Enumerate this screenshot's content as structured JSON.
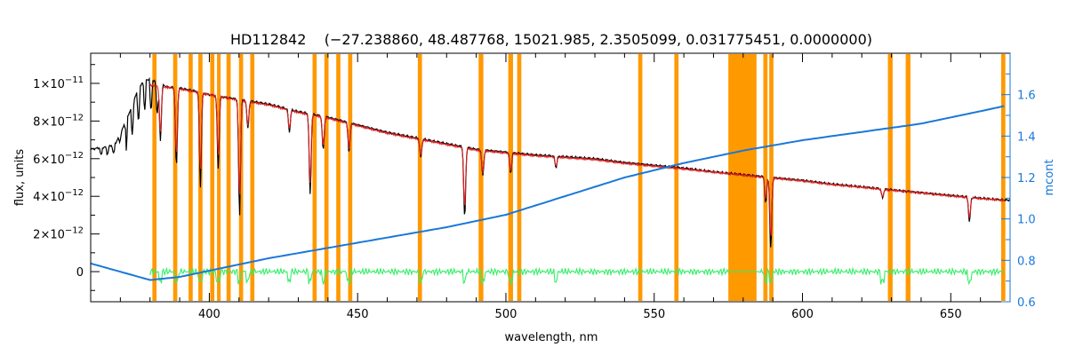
{
  "chart_data": {
    "type": "line",
    "title": "HD112842    (−27.238860, 48.487768, 15021.985, 2.3505099, 0.031775451, 0.0000000)",
    "xlabel": "wavelength, nm",
    "ylabel": "flux, units",
    "y2label": "mcont",
    "xlim": [
      360,
      670
    ],
    "ylim": [
      -1.6e-12,
      1.16e-11
    ],
    "y2lim": [
      0.6,
      1.8
    ],
    "x_ticks": [
      400,
      450,
      500,
      550,
      600,
      650
    ],
    "x_tick_labels": [
      "400",
      "450",
      "500",
      "550",
      "600",
      "650"
    ],
    "y_ticks": [
      0,
      2e-12,
      4e-12,
      6e-12,
      8e-12,
      1e-11
    ],
    "y_tick_labels": [
      {
        "mant": "0",
        "exp": ""
      },
      {
        "mant": "2×10",
        "exp": "−12"
      },
      {
        "mant": "4×10",
        "exp": "−12"
      },
      {
        "mant": "6×10",
        "exp": "−12"
      },
      {
        "mant": "8×10",
        "exp": "−12"
      },
      {
        "mant": "1×10",
        "exp": "−11"
      }
    ],
    "y2_ticks": [
      0.6,
      0.8,
      1.0,
      1.2,
      1.4,
      1.6
    ],
    "y2_tick_labels": [
      "0.6",
      "0.8",
      "1.0",
      "1.2",
      "1.4",
      "1.6"
    ],
    "mask_bands": [
      [
        380.8,
        382.2
      ],
      [
        387.8,
        389.2
      ],
      [
        393.0,
        394.4
      ],
      [
        396.3,
        397.7
      ],
      [
        400.3,
        401.7
      ],
      [
        402.6,
        403.8
      ],
      [
        405.8,
        407.2
      ],
      [
        410.0,
        411.4
      ],
      [
        413.8,
        415.2
      ],
      [
        434.8,
        436.2
      ],
      [
        438.8,
        440.2
      ],
      [
        442.8,
        444.2
      ],
      [
        446.8,
        448.2
      ],
      [
        470.3,
        471.7
      ],
      [
        490.8,
        492.4
      ],
      [
        500.8,
        502.4
      ],
      [
        503.8,
        505.2
      ],
      [
        544.6,
        546.0
      ],
      [
        556.8,
        558.2
      ],
      [
        575.0,
        584.5
      ],
      [
        586.8,
        588.2
      ],
      [
        588.8,
        590.2
      ],
      [
        628.8,
        630.4
      ],
      [
        634.8,
        636.4
      ],
      [
        667.0,
        668.4
      ]
    ],
    "series": [
      {
        "role": "observed",
        "color": "#000000",
        "x": [
          360,
          368,
          372,
          375,
          378,
          380,
          383,
          386,
          390,
          395,
          400,
          410,
          420,
          430,
          440,
          450,
          460,
          470,
          480,
          490,
          500,
          510,
          520,
          530,
          540,
          550,
          560,
          570,
          580,
          590,
          600,
          610,
          620,
          630,
          640,
          650,
          660,
          668
        ],
        "y": [
          6.5e-12,
          6.7e-12,
          8e-12,
          9.3e-12,
          1.02e-11,
          1.02e-11,
          1e-11,
          9.8e-12,
          9.75e-12,
          9.6e-12,
          9.4e-12,
          9.15e-12,
          8.9e-12,
          8.5e-12,
          8.2e-12,
          7.8e-12,
          7.4e-12,
          7.1e-12,
          6.8e-12,
          6.5e-12,
          6.35e-12,
          6.2e-12,
          6.1e-12,
          6e-12,
          5.8e-12,
          5.65e-12,
          5.5e-12,
          5.3e-12,
          5.15e-12,
          5e-12,
          4.85e-12,
          4.65e-12,
          4.5e-12,
          4.35e-12,
          4.2e-12,
          4.05e-12,
          3.9e-12,
          3.8e-12
        ]
      },
      {
        "role": "model",
        "color": "#e02020",
        "x": [
          380,
          390,
          400,
          410,
          420,
          430,
          440,
          450,
          460,
          470,
          480,
          490,
          500,
          510,
          520,
          530,
          540,
          550,
          560,
          570,
          580,
          590,
          600,
          610,
          620,
          630,
          640,
          650,
          660,
          668
        ],
        "y": [
          9.9e-12,
          9.7e-12,
          9.4e-12,
          9.1e-12,
          8.85e-12,
          8.45e-12,
          8.15e-12,
          7.75e-12,
          7.35e-12,
          7.05e-12,
          6.75e-12,
          6.45e-12,
          6.3e-12,
          6.15e-12,
          6.05e-12,
          5.95e-12,
          5.75e-12,
          5.6e-12,
          5.45e-12,
          5.28e-12,
          5.12e-12,
          4.97e-12,
          4.82e-12,
          4.62e-12,
          4.48e-12,
          4.32e-12,
          4.18e-12,
          4.02e-12,
          3.88e-12,
          3.78e-12
        ]
      },
      {
        "role": "residual",
        "color": "#33ee66",
        "x": [
          380,
          390,
          400,
          410,
          420,
          430,
          440,
          450,
          460,
          470,
          480,
          490,
          500,
          510,
          520,
          530,
          540,
          550,
          560,
          570,
          575,
          585,
          590,
          600,
          610,
          620,
          630,
          640,
          650,
          660,
          668
        ],
        "y": [
          0,
          0,
          0,
          0,
          0,
          0,
          0,
          0,
          0,
          0,
          0,
          0,
          0,
          0,
          0,
          0,
          0,
          0,
          0,
          0,
          0,
          0,
          0,
          0,
          0,
          0,
          0,
          0,
          0,
          0,
          0
        ]
      },
      {
        "role": "mcont",
        "axis": "y2",
        "color": "#1a78d8",
        "x": [
          360,
          380,
          390,
          400,
          420,
          440,
          460,
          480,
          500,
          520,
          540,
          560,
          580,
          600,
          620,
          640,
          660,
          668
        ],
        "y": [
          0.785,
          0.705,
          0.72,
          0.75,
          0.81,
          0.86,
          0.91,
          0.96,
          1.02,
          1.11,
          1.2,
          1.27,
          1.33,
          1.38,
          1.42,
          1.46,
          1.52,
          1.545
        ]
      }
    ],
    "absorption_lines": [
      {
        "x": 383.5,
        "depth": 3e-12
      },
      {
        "x": 388.9,
        "depth": 4.2e-12
      },
      {
        "x": 397.0,
        "depth": 5e-12
      },
      {
        "x": 403.0,
        "depth": 3.8e-12
      },
      {
        "x": 410.2,
        "depth": 6.2e-12
      },
      {
        "x": 413.0,
        "depth": 1.5e-12
      },
      {
        "x": 427.0,
        "depth": 1.2e-12
      },
      {
        "x": 434.0,
        "depth": 4.3e-12
      },
      {
        "x": 438.4,
        "depth": 1.8e-12
      },
      {
        "x": 447.1,
        "depth": 1.6e-12
      },
      {
        "x": 471.3,
        "depth": 1e-12
      },
      {
        "x": 486.1,
        "depth": 3.8e-12
      },
      {
        "x": 492.2,
        "depth": 1.4e-12
      },
      {
        "x": 501.6,
        "depth": 1.1e-12
      },
      {
        "x": 516.9,
        "depth": 6e-13
      },
      {
        "x": 587.6,
        "depth": 1.4e-12
      },
      {
        "x": 589.3,
        "depth": 3.8e-12
      },
      {
        "x": 627.0,
        "depth": 5e-13
      },
      {
        "x": 656.3,
        "depth": 1.3e-12
      }
    ]
  }
}
